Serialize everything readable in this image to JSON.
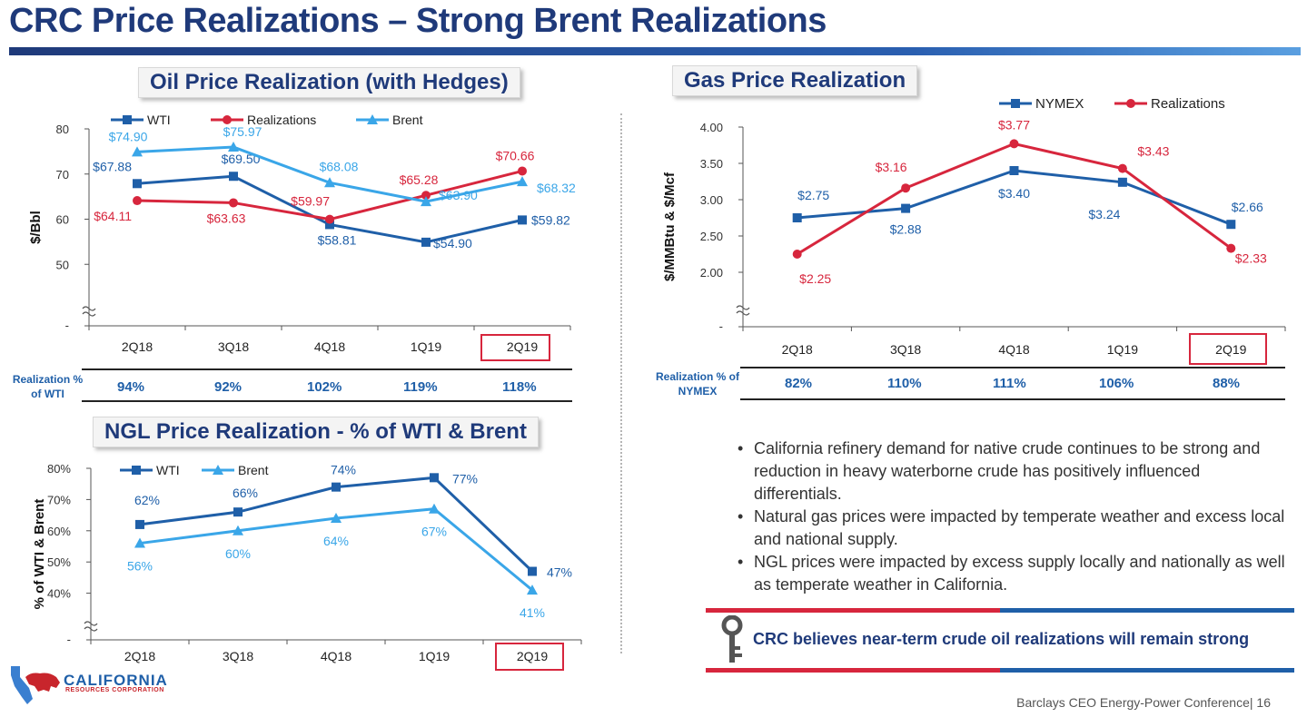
{
  "page": {
    "title": "CRC Price Realizations – Strong Brent Realizations",
    "footer": "Barclays CEO Energy-Power Conference",
    "page_number": "16",
    "logo_name": "CALIFORNIA",
    "logo_sub": "RESOURCES CORPORATION"
  },
  "sections": {
    "oil_title": "Oil Price Realization (with Hedges)",
    "gas_title": "Gas Price Realization",
    "ngl_title": "NGL Price Realization - % of WTI & Brent"
  },
  "oil_realization": {
    "label": "Realization % of WTI",
    "values": [
      "94%",
      "92%",
      "102%",
      "119%",
      "118%"
    ]
  },
  "gas_realization": {
    "label": "Realization % of NYMEX",
    "values": [
      "82%",
      "110%",
      "111%",
      "106%",
      "88%"
    ]
  },
  "bullets": [
    "California refinery demand for native crude continues to be strong and reduction in heavy waterborne crude has positively influenced differentials.",
    "Natural gas prices were impacted by temperate weather and excess local and national supply.",
    "NGL prices were impacted by excess supply locally and nationally as well as temperate weather in California."
  ],
  "key_message": "CRC believes near-term crude oil realizations will remain strong",
  "colors": {
    "dark_blue": "#1f5fa8",
    "red": "#d7263d",
    "light_blue": "#3aa6e8",
    "navy": "#1f3a7a"
  },
  "chart_data": [
    {
      "id": "oil",
      "type": "line",
      "title": "Oil Price Realization (with Hedges)",
      "ylabel": "$/Bbl",
      "categories": [
        "2Q18",
        "3Q18",
        "4Q18",
        "1Q19",
        "2Q19"
      ],
      "highlight_category": "2Q19",
      "ylim": [
        40,
        80
      ],
      "yticks": [
        50,
        60,
        70,
        80
      ],
      "ytick_labels": [
        "50",
        "60",
        "70",
        "80"
      ],
      "axis_break_label": "-",
      "series": [
        {
          "name": "WTI",
          "color": "#1f5fa8",
          "marker": "square",
          "values": [
            67.88,
            69.5,
            58.81,
            54.9,
            59.82
          ],
          "labels": [
            "$67.88",
            "$69.50",
            "$58.81",
            "$54.90",
            "$59.82"
          ]
        },
        {
          "name": "Realizations",
          "color": "#d7263d",
          "marker": "circle",
          "values": [
            64.11,
            63.63,
            59.97,
            65.28,
            70.66
          ],
          "labels": [
            "$64.11",
            "$63.63",
            "$59.97",
            "$65.28",
            "$70.66"
          ]
        },
        {
          "name": "Brent",
          "color": "#3aa6e8",
          "marker": "triangle",
          "values": [
            74.9,
            75.97,
            68.08,
            63.9,
            68.32
          ],
          "labels": [
            "$74.90",
            "$75.97",
            "$68.08",
            "$63.90",
            "$68.32"
          ]
        }
      ]
    },
    {
      "id": "gas",
      "type": "line",
      "title": "Gas Price Realization",
      "ylabel": "$/MMBtu & $/Mcf",
      "categories": [
        "2Q18",
        "3Q18",
        "4Q18",
        "1Q19",
        "2Q19"
      ],
      "highlight_category": "2Q19",
      "ylim": [
        1.5,
        4.0
      ],
      "yticks": [
        2.0,
        2.5,
        3.0,
        3.5,
        4.0
      ],
      "ytick_labels": [
        "2.00",
        "2.50",
        "3.00",
        "3.50",
        "4.00"
      ],
      "axis_break_label": "-",
      "series": [
        {
          "name": "NYMEX",
          "color": "#1f5fa8",
          "marker": "square",
          "values": [
            2.75,
            2.88,
            3.4,
            3.24,
            2.66
          ],
          "labels": [
            "$2.75",
            "$2.88",
            "$3.40",
            "$3.24",
            "$2.66"
          ]
        },
        {
          "name": "Realizations",
          "color": "#d7263d",
          "marker": "circle",
          "values": [
            2.25,
            3.16,
            3.77,
            3.43,
            2.33
          ],
          "labels": [
            "$2.25",
            "$3.16",
            "$3.77",
            "$3.43",
            "$2.33"
          ]
        }
      ]
    },
    {
      "id": "ngl",
      "type": "line",
      "title": "NGL Price Realization - % of WTI & Brent",
      "ylabel": "% of WTI & Brent",
      "categories": [
        "2Q18",
        "3Q18",
        "4Q18",
        "1Q19",
        "2Q19"
      ],
      "highlight_category": "2Q19",
      "ylim": [
        30,
        80
      ],
      "yticks": [
        40,
        50,
        60,
        70,
        80
      ],
      "ytick_labels": [
        "40%",
        "50%",
        "60%",
        "70%",
        "80%"
      ],
      "axis_break_label": "-",
      "series": [
        {
          "name": "WTI",
          "color": "#1f5fa8",
          "marker": "square",
          "values": [
            62,
            66,
            74,
            77,
            47
          ],
          "labels": [
            "62%",
            "66%",
            "74%",
            "77%",
            "47%"
          ]
        },
        {
          "name": "Brent",
          "color": "#3aa6e8",
          "marker": "triangle",
          "values": [
            56,
            60,
            64,
            67,
            41
          ],
          "labels": [
            "56%",
            "60%",
            "64%",
            "67%",
            "41%"
          ]
        }
      ]
    }
  ]
}
